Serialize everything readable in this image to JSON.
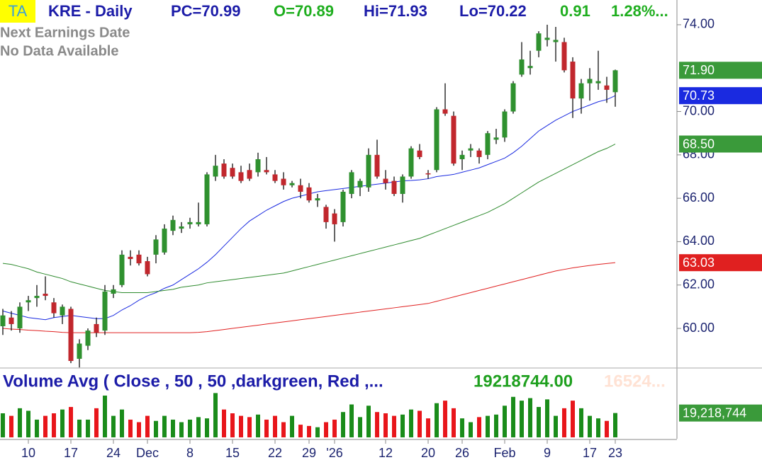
{
  "header": {
    "badge": "TA",
    "symbol": "KRE - Daily",
    "pc": "PC=70.99",
    "open": "O=70.89",
    "high": "Hi=71.93",
    "low": "Lo=70.22",
    "change": "0.91",
    "change_pct": "1.28%..."
  },
  "notes": [
    "Next Earnings Date",
    "No Data Available"
  ],
  "chart_data": [
    {
      "type": "candlestick",
      "categories": [
        null,
        null,
        null,
        "10",
        null,
        null,
        null,
        null,
        "17",
        null,
        null,
        null,
        null,
        "24",
        null,
        null,
        null,
        "Dec",
        null,
        null,
        null,
        null,
        "8",
        null,
        null,
        null,
        null,
        "15",
        null,
        null,
        null,
        null,
        "22",
        null,
        null,
        null,
        "29",
        null,
        null,
        "'26",
        null,
        null,
        null,
        null,
        null,
        "12",
        null,
        null,
        null,
        null,
        "20",
        null,
        null,
        null,
        "26",
        null,
        null,
        null,
        null,
        "Feb",
        null,
        null,
        null,
        null,
        "9",
        null,
        null,
        null,
        null,
        "17",
        null,
        null,
        "23"
      ],
      "open": [
        60.1,
        60.5,
        60.0,
        61.2,
        61.4,
        61.6,
        61.2,
        60.6,
        60.9,
        58.6,
        59.2,
        60.2,
        59.9,
        61.6,
        62.0,
        63.3,
        63.4,
        63.1,
        63.4,
        63.5,
        64.5,
        64.6,
        64.8,
        64.8,
        64.8,
        67.0,
        67.6,
        67.4,
        67.2,
        67.3,
        67.2,
        67.3,
        67.1,
        66.9,
        66.6,
        66.6,
        66.5,
        65.9,
        65.6,
        65.3,
        64.9,
        66.2,
        66.5,
        66.5,
        68.0,
        66.9,
        66.8,
        66.2,
        67.0,
        68.2,
        67.15,
        67.3,
        70.1,
        69.8,
        67.8,
        68.2,
        68.2,
        68.0,
        68.7,
        68.8,
        70.0,
        71.7,
        72.0,
        72.8,
        73.3,
        73.2,
        73.2,
        72.3,
        70.6,
        71.3,
        71.3,
        71.2,
        70.89
      ],
      "high": [
        60.9,
        60.8,
        61.2,
        61.5,
        62.0,
        62.4,
        61.4,
        61.1,
        61.0,
        59.5,
        60.0,
        60.5,
        62.0,
        62.0,
        63.6,
        63.6,
        63.6,
        63.3,
        64.3,
        64.8,
        65.2,
        64.9,
        65.1,
        65.8,
        67.2,
        68.0,
        67.8,
        67.6,
        67.5,
        67.6,
        68.1,
        67.9,
        67.3,
        67.2,
        66.8,
        66.9,
        66.7,
        66.2,
        65.7,
        65.5,
        66.4,
        67.3,
        66.9,
        68.3,
        68.7,
        67.3,
        67.0,
        67.1,
        68.4,
        68.5,
        67.3,
        70.2,
        71.3,
        70.0,
        68.2,
        68.5,
        68.3,
        69.1,
        69.2,
        70.1,
        71.4,
        73.2,
        72.8,
        73.7,
        74.0,
        73.9,
        73.4,
        72.5,
        71.5,
        72.0,
        72.8,
        71.6,
        71.93
      ],
      "low": [
        59.7,
        59.9,
        59.8,
        60.8,
        61.0,
        61.3,
        60.5,
        60.2,
        58.4,
        58.2,
        59.0,
        59.6,
        59.7,
        61.4,
        61.9,
        62.9,
        62.9,
        62.4,
        63.0,
        63.4,
        64.3,
        64.4,
        64.6,
        64.7,
        64.7,
        66.8,
        66.9,
        66.9,
        66.7,
        66.8,
        67.0,
        67.1,
        66.7,
        66.4,
        66.5,
        66.0,
        65.8,
        65.6,
        64.6,
        64.0,
        64.7,
        66.0,
        66.1,
        66.3,
        66.9,
        66.4,
        66.1,
        65.8,
        66.9,
        67.8,
        66.9,
        67.2,
        69.8,
        67.5,
        67.3,
        67.9,
        67.6,
        67.8,
        68.5,
        68.6,
        69.9,
        71.6,
        71.7,
        72.5,
        73.0,
        72.3,
        71.8,
        69.7,
        69.9,
        70.5,
        71.0,
        70.4,
        70.22
      ],
      "close": [
        60.6,
        60.2,
        61.0,
        61.3,
        61.5,
        61.5,
        60.7,
        61.0,
        58.5,
        59.3,
        59.9,
        59.8,
        61.7,
        61.8,
        63.4,
        63.2,
        63.0,
        62.5,
        64.1,
        64.6,
        65.0,
        64.7,
        64.9,
        64.9,
        67.1,
        67.5,
        67.0,
        67.0,
        66.8,
        66.9,
        67.8,
        67.2,
        66.8,
        66.6,
        66.7,
        66.3,
        65.9,
        66.0,
        64.9,
        64.8,
        66.3,
        67.2,
        66.8,
        68.0,
        67.0,
        66.7,
        66.2,
        67.0,
        68.3,
        67.9,
        67.1,
        70.1,
        69.9,
        67.6,
        68.0,
        68.3,
        67.9,
        69.0,
        68.8,
        70.0,
        71.3,
        72.4,
        72.1,
        73.6,
        73.4,
        73.3,
        71.9,
        70.6,
        71.3,
        71.5,
        71.4,
        71.0,
        71.9
      ],
      "close_label": "71.90",
      "up_color": "#2f912f",
      "down_color": "#c1272d",
      "flag_color": "#3a9a3a",
      "lines": [
        {
          "color": "#1a2ae0",
          "last_label": "70.73",
          "values": [
            60.8,
            60.7,
            60.6,
            60.5,
            60.45,
            60.4,
            60.5,
            60.55,
            60.6,
            60.55,
            60.5,
            60.45,
            60.45,
            60.6,
            60.85,
            61.05,
            61.3,
            61.5,
            61.65,
            61.85,
            62.0,
            62.25,
            62.5,
            62.75,
            63.05,
            63.4,
            63.8,
            64.2,
            64.6,
            64.95,
            65.2,
            65.45,
            65.65,
            65.85,
            66.0,
            66.1,
            66.2,
            66.3,
            66.35,
            66.4,
            66.45,
            66.5,
            66.55,
            66.6,
            66.65,
            66.7,
            66.75,
            66.8,
            66.82,
            66.85,
            66.9,
            67.0,
            67.05,
            67.1,
            67.2,
            67.3,
            67.4,
            67.55,
            67.7,
            67.85,
            68.1,
            68.4,
            68.75,
            69.1,
            69.35,
            69.6,
            69.8,
            70.0,
            70.15,
            70.3,
            70.45,
            70.55,
            70.73
          ]
        },
        {
          "color": "#2e8b2e",
          "flag_color": "#3a9a3a",
          "last_label": "68.50",
          "values": [
            63.0,
            62.95,
            62.85,
            62.75,
            62.6,
            62.5,
            62.4,
            62.3,
            62.15,
            62.05,
            61.95,
            61.85,
            61.75,
            61.7,
            61.65,
            61.65,
            61.65,
            61.65,
            61.7,
            61.75,
            61.8,
            61.9,
            61.95,
            62.0,
            62.1,
            62.15,
            62.2,
            62.25,
            62.3,
            62.35,
            62.4,
            62.45,
            62.5,
            62.55,
            62.65,
            62.75,
            62.85,
            62.95,
            63.05,
            63.15,
            63.25,
            63.35,
            63.45,
            63.55,
            63.65,
            63.75,
            63.85,
            63.95,
            64.05,
            64.15,
            64.3,
            64.45,
            64.6,
            64.75,
            64.9,
            65.05,
            65.2,
            65.35,
            65.55,
            65.75,
            66.0,
            66.25,
            66.5,
            66.75,
            66.95,
            67.15,
            67.35,
            67.55,
            67.75,
            67.95,
            68.15,
            68.3,
            68.5
          ]
        },
        {
          "color": "#e02020",
          "last_label": "63.03",
          "values": [
            60.0,
            59.97,
            59.95,
            59.92,
            59.9,
            59.87,
            59.85,
            59.82,
            59.8,
            59.8,
            59.8,
            59.8,
            59.8,
            59.8,
            59.8,
            59.8,
            59.8,
            59.8,
            59.8,
            59.8,
            59.8,
            59.8,
            59.8,
            59.82,
            59.85,
            59.9,
            59.95,
            60.0,
            60.05,
            60.1,
            60.15,
            60.2,
            60.25,
            60.3,
            60.35,
            60.4,
            60.45,
            60.5,
            60.55,
            60.6,
            60.65,
            60.7,
            60.75,
            60.8,
            60.85,
            60.9,
            60.95,
            61.0,
            61.05,
            61.1,
            61.15,
            61.25,
            61.35,
            61.45,
            61.55,
            61.65,
            61.75,
            61.85,
            61.95,
            62.05,
            62.15,
            62.25,
            62.35,
            62.45,
            62.55,
            62.65,
            62.72,
            62.79,
            62.85,
            62.9,
            62.95,
            62.99,
            63.03
          ]
        }
      ],
      "ylim": [
        58.24,
        75.14
      ],
      "yticks": [
        {
          "value": 60,
          "label": "60.00"
        },
        {
          "value": 62,
          "label": "62.00"
        },
        {
          "value": 64,
          "label": "64.00"
        },
        {
          "value": 66,
          "label": "66.00"
        },
        {
          "value": 68,
          "label": "68.00"
        },
        {
          "value": 70,
          "label": "70.00"
        },
        {
          "value": 74,
          "label": "74.00"
        }
      ]
    },
    {
      "type": "bar",
      "title": "Volume Avg ( Close , 50 , 50 ,darkgreen, Red ,...",
      "current": "19218744.00",
      "average": "16524...",
      "up_color": "#1a8c1a",
      "down_color": "#e8161b",
      "flag_color": "#3a9a3a",
      "values": [
        19000000,
        17000000,
        23000000,
        21000000,
        14000000,
        17000000,
        19000000,
        22000000,
        24000000,
        14000000,
        14000000,
        23000000,
        33000000,
        17000000,
        22000000,
        14000000,
        12000000,
        17000000,
        13000000,
        17000000,
        14000000,
        12000000,
        14000000,
        16000000,
        15000000,
        35000000,
        22000000,
        19000000,
        17000000,
        16000000,
        18000000,
        14000000,
        17000000,
        12000000,
        17000000,
        10000000,
        9000000,
        8000000,
        12000000,
        14000000,
        20000000,
        26000000,
        16000000,
        25000000,
        20000000,
        19000000,
        17000000,
        18000000,
        22000000,
        21000000,
        15000000,
        27000000,
        29000000,
        23000000,
        15000000,
        12000000,
        16000000,
        17000000,
        18000000,
        25000000,
        32000000,
        29000000,
        31000000,
        24000000,
        30000000,
        17000000,
        23000000,
        29000000,
        23000000,
        17000000,
        15000000,
        13000000,
        19218744
      ],
      "last_label": "19,218,744",
      "ylim": [
        0,
        52000000
      ]
    }
  ]
}
